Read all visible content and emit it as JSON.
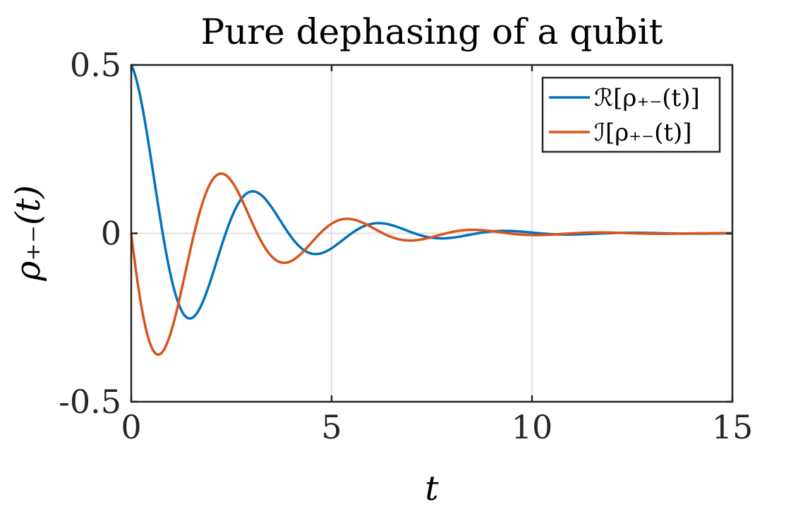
{
  "chart_data": {
    "type": "line",
    "title": "Pure dephasing of a qubit",
    "xlabel": "t",
    "ylabel": "ρ₊₋(t)",
    "xlim": [
      0,
      15
    ],
    "ylim": [
      -0.5,
      0.5
    ],
    "x_ticks": [
      "0",
      "5",
      "10",
      "15"
    ],
    "y_ticks": [
      "-0.5",
      "0",
      "0.5"
    ],
    "grid": true,
    "legend_position": "top-right",
    "model": {
      "amplitude": 0.5,
      "omega": 2.0,
      "decay": 0.45
    },
    "series": [
      {
        "name": "ℛ[ρ₊₋(t)]",
        "color": "#0072BD",
        "component": "real",
        "x": [
          0,
          0.25,
          0.5,
          0.75,
          1.0,
          1.25,
          1.5,
          1.75,
          2.0,
          2.25,
          2.5,
          2.75,
          3.0,
          3.25,
          3.5,
          3.75,
          4.0,
          4.25,
          4.5,
          4.75,
          5.0,
          5.5,
          6.0,
          6.5,
          7.0,
          7.5,
          8.0,
          8.5,
          9.0,
          9.5,
          10.0,
          10.5,
          11.0,
          11.5,
          12.0,
          12.5,
          13.0,
          13.5,
          14.0,
          14.5,
          15.0
        ],
        "y": [
          0.5,
          0.393,
          0.226,
          0.045,
          -0.113,
          -0.22,
          -0.265,
          -0.25,
          -0.188,
          -0.098,
          0.001,
          0.085,
          0.131,
          0.141,
          0.112,
          0.057,
          -0.005,
          -0.06,
          -0.079,
          -0.076,
          -0.05,
          0.011,
          0.037,
          0.027,
          0.002,
          -0.017,
          -0.018,
          -0.007,
          0.006,
          0.01,
          0.004,
          -0.003,
          -0.005,
          -0.002,
          0.002,
          0.003,
          0.001,
          -0.001,
          -0.001,
          0.0,
          0.0
        ]
      },
      {
        "name": "ℐ[ρ₊₋(t)]",
        "color": "#D95319",
        "component": "imag",
        "x": [
          0,
          0.25,
          0.5,
          0.75,
          1.0,
          1.25,
          1.5,
          1.75,
          2.0,
          2.25,
          2.5,
          2.75,
          3.0,
          3.25,
          3.5,
          3.75,
          4.0,
          4.25,
          4.5,
          4.75,
          5.0,
          5.5,
          6.0,
          6.5,
          7.0,
          7.5,
          8.0,
          8.5,
          9.0,
          9.5,
          10.0,
          10.5,
          11.0,
          11.5,
          12.0,
          12.5,
          13.0,
          13.5,
          14.0,
          14.5,
          15.0
        ],
        "y": [
          0.0,
          -0.215,
          -0.336,
          -0.363,
          -0.289,
          -0.138,
          0.026,
          0.146,
          0.193,
          0.174,
          0.108,
          0.024,
          -0.047,
          -0.088,
          -0.1,
          -0.085,
          -0.046,
          -0.003,
          0.032,
          0.05,
          0.05,
          0.024,
          -0.013,
          -0.028,
          -0.021,
          0.001,
          0.014,
          0.013,
          0.003,
          -0.006,
          -0.007,
          -0.002,
          0.003,
          0.004,
          0.001,
          -0.001,
          -0.002,
          -0.001,
          0.0,
          0.001,
          0.0
        ]
      }
    ]
  }
}
